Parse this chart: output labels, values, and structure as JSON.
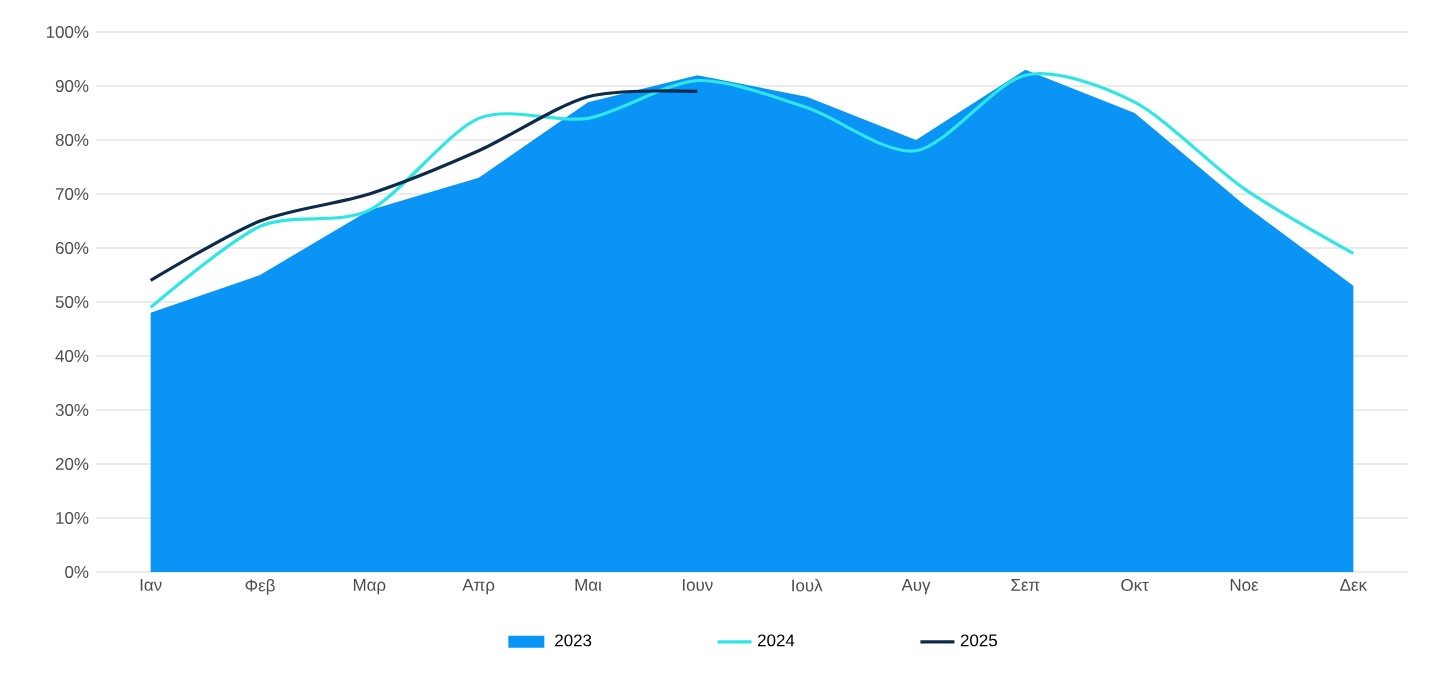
{
  "chart_data": {
    "type": "line",
    "categories": [
      "Ιαν",
      "Φεβ",
      "Μαρ",
      "Απρ",
      "Μαι",
      "Ιουν",
      "Ιουλ",
      "Αυγ",
      "Σεπ",
      "Οκτ",
      "Νοε",
      "Δεκ"
    ],
    "series": [
      {
        "name": "2023",
        "type": "area",
        "color": "#0a94f5",
        "values": [
          48,
          55,
          67,
          73,
          87,
          92,
          88,
          80,
          93,
          85,
          68,
          53
        ]
      },
      {
        "name": "2024",
        "color": "#2ee6e6",
        "values": [
          49,
          64,
          67,
          84,
          84,
          91,
          86,
          78,
          92,
          87,
          71,
          59
        ]
      },
      {
        "name": "2025",
        "color": "#0d2a4a",
        "values": [
          54,
          65,
          70,
          78,
          88,
          89,
          null,
          null,
          null,
          null,
          null,
          null
        ]
      }
    ],
    "ylim": [
      0,
      100
    ],
    "yticks": [
      {
        "value": 0,
        "label": "0%"
      },
      {
        "value": 10,
        "label": "10%"
      },
      {
        "value": 20,
        "label": "20%"
      },
      {
        "value": 30,
        "label": "30%"
      },
      {
        "value": 40,
        "label": "40%"
      },
      {
        "value": 50,
        "label": "50%"
      },
      {
        "value": 60,
        "label": "60%"
      },
      {
        "value": 70,
        "label": "70%"
      },
      {
        "value": 80,
        "label": "80%"
      },
      {
        "value": 90,
        "label": "90%"
      },
      {
        "value": 100,
        "label": "100%"
      }
    ],
    "grid": "y",
    "legend": "bottom",
    "marker": "none",
    "line_style": "solid"
  }
}
